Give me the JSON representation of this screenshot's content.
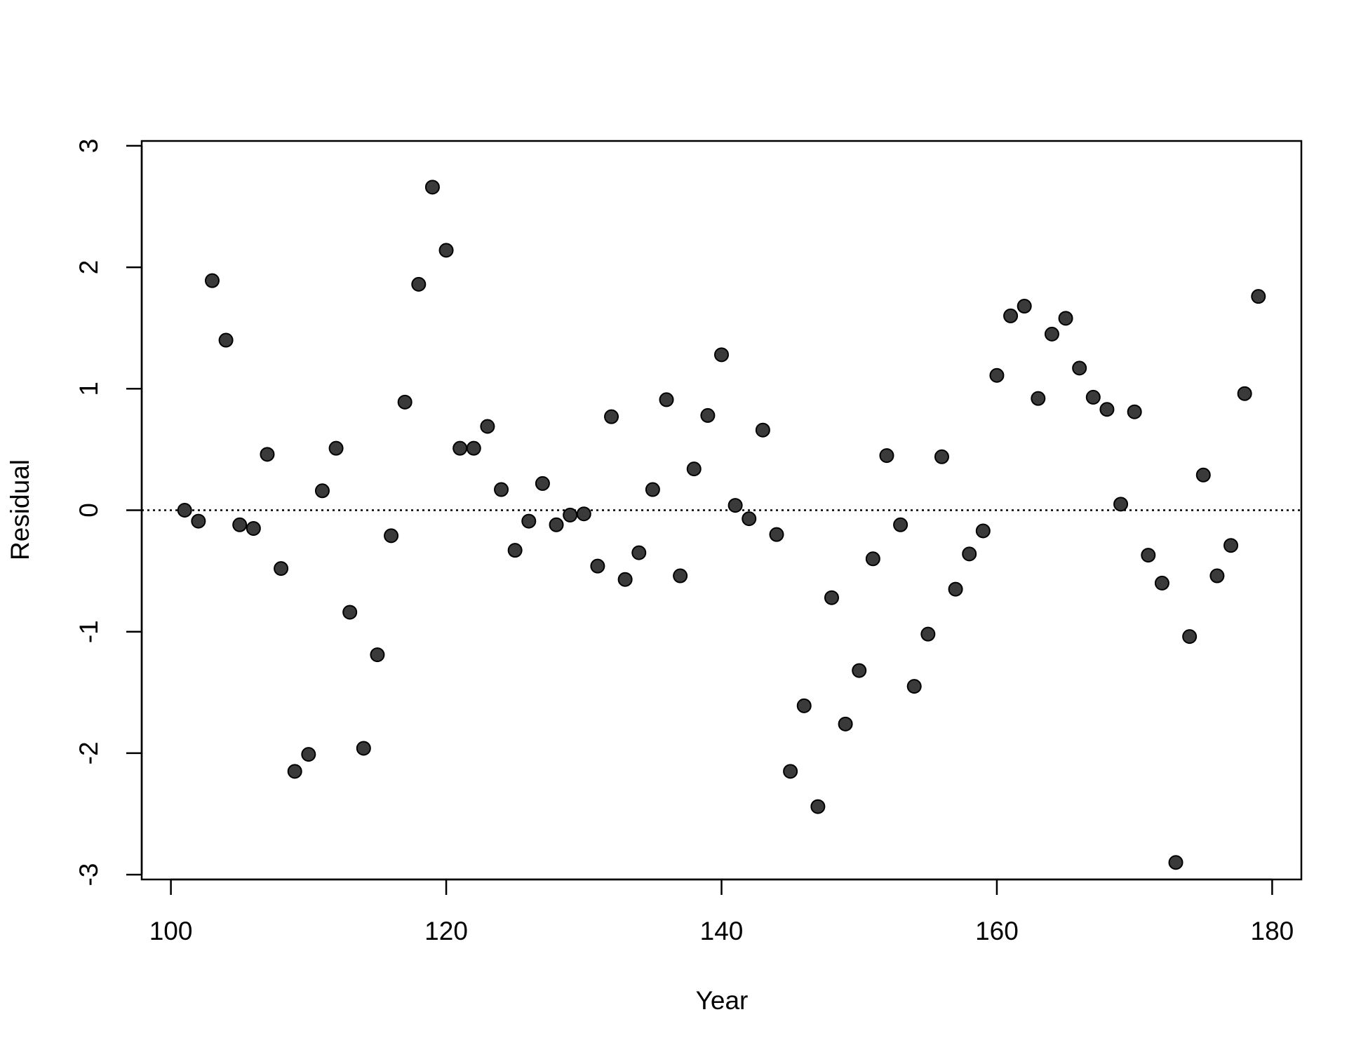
{
  "chart_data": {
    "type": "scatter",
    "xlabel": "Year",
    "ylabel": "Residual",
    "x": [
      101,
      102,
      103,
      104,
      105,
      106,
      107,
      108,
      109,
      110,
      111,
      112,
      113,
      114,
      115,
      116,
      117,
      118,
      119,
      120,
      121,
      122,
      123,
      124,
      125,
      126,
      127,
      128,
      129,
      130,
      131,
      132,
      133,
      134,
      135,
      136,
      137,
      138,
      139,
      140,
      141,
      142,
      143,
      144,
      145,
      146,
      147,
      148,
      149,
      150,
      151,
      152,
      153,
      154,
      155,
      156,
      157,
      158,
      159,
      160,
      161,
      162,
      163,
      164,
      165,
      166,
      167,
      168,
      169,
      170,
      171,
      172,
      173,
      174,
      175,
      176,
      177,
      178,
      179
    ],
    "y": [
      0.0,
      -0.09,
      1.89,
      1.4,
      -0.12,
      -0.15,
      0.46,
      -0.48,
      -2.15,
      -2.01,
      0.16,
      0.51,
      -0.84,
      -1.96,
      -1.19,
      -0.21,
      0.89,
      1.86,
      2.66,
      2.14,
      0.51,
      0.51,
      0.69,
      0.17,
      -0.33,
      -0.09,
      0.22,
      -0.12,
      -0.04,
      -0.03,
      -0.46,
      0.77,
      -0.57,
      -0.35,
      0.17,
      0.91,
      -0.54,
      0.34,
      0.78,
      1.28,
      0.04,
      -0.07,
      0.66,
      -0.2,
      -2.15,
      -1.61,
      -2.44,
      -0.72,
      -1.76,
      -1.32,
      -0.4,
      0.45,
      -0.12,
      -1.45,
      -1.02,
      0.44,
      -0.65,
      -0.36,
      -0.17,
      1.11,
      1.6,
      1.68,
      0.92,
      1.45,
      1.58,
      1.17,
      0.93,
      0.83,
      0.05,
      0.81,
      -0.37,
      -0.6,
      -2.9,
      -1.04,
      0.29,
      -0.54,
      -0.29,
      0.96,
      1.76
    ],
    "color": "#3a3a3a",
    "xlim": [
      97.88,
      182.12
    ],
    "ylim": [
      -3.04,
      3.04
    ],
    "xticks": [
      100,
      120,
      140,
      160,
      180
    ],
    "yticks": [
      -3,
      -2,
      -1,
      0,
      1,
      2,
      3
    ],
    "hline": 0
  }
}
